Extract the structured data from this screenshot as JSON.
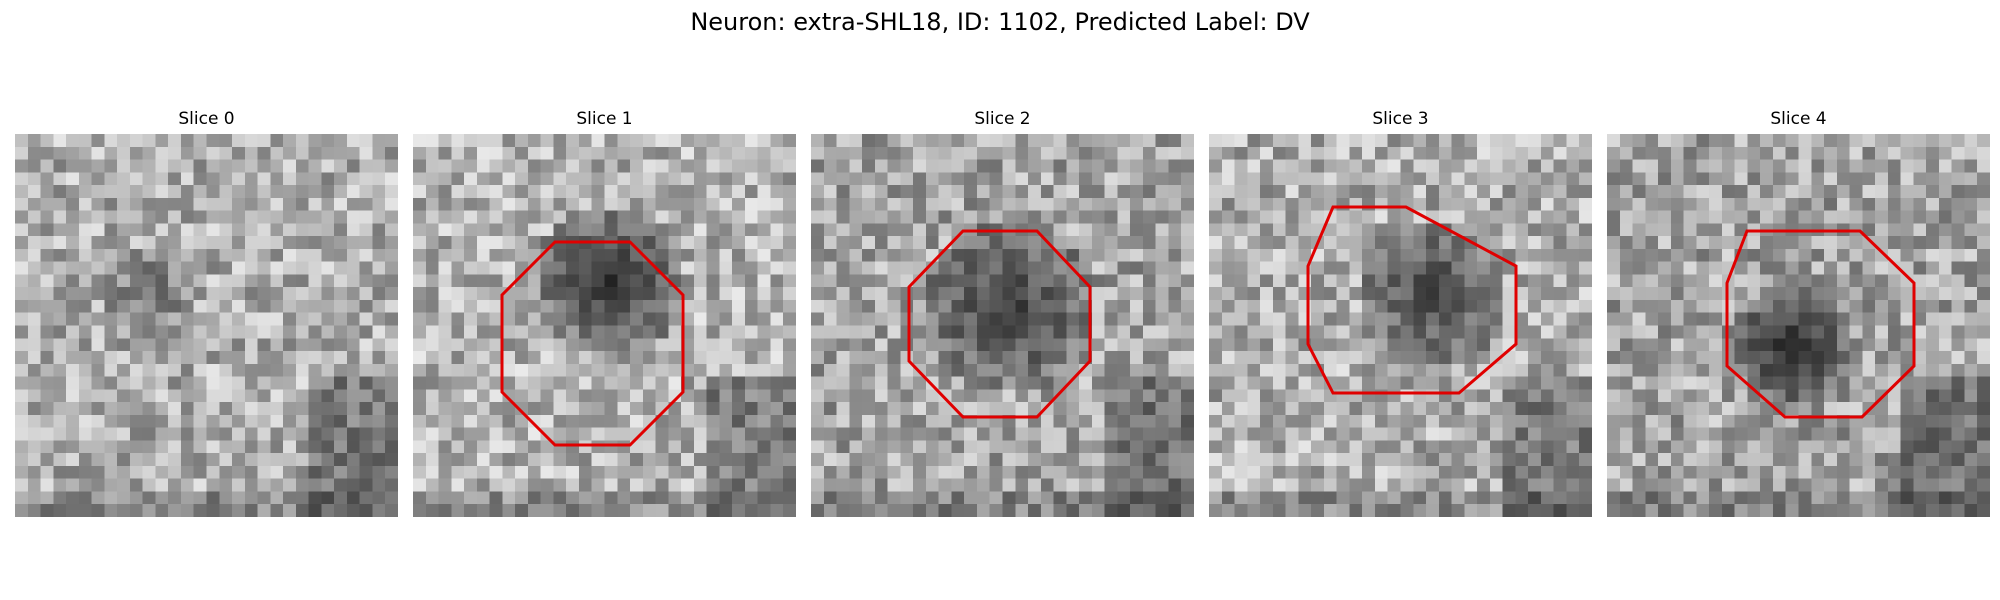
{
  "figure": {
    "title": "Neuron: extra-SHL18, ID: 1102, Predicted Label: DV"
  },
  "panels": [
    {
      "title": "Slice 0",
      "has_outline": false,
      "image": "grayscale-noise-patch",
      "outline_color": "#e00000"
    },
    {
      "title": "Slice 1",
      "has_outline": true,
      "image": "grayscale-noise-patch",
      "outline_color": "#e00000"
    },
    {
      "title": "Slice 2",
      "has_outline": true,
      "image": "grayscale-noise-patch",
      "outline_color": "#e00000"
    },
    {
      "title": "Slice 3",
      "has_outline": true,
      "image": "grayscale-noise-patch",
      "outline_color": "#e00000"
    },
    {
      "title": "Slice 4",
      "has_outline": true,
      "image": "grayscale-noise-patch",
      "outline_color": "#e00000"
    }
  ]
}
